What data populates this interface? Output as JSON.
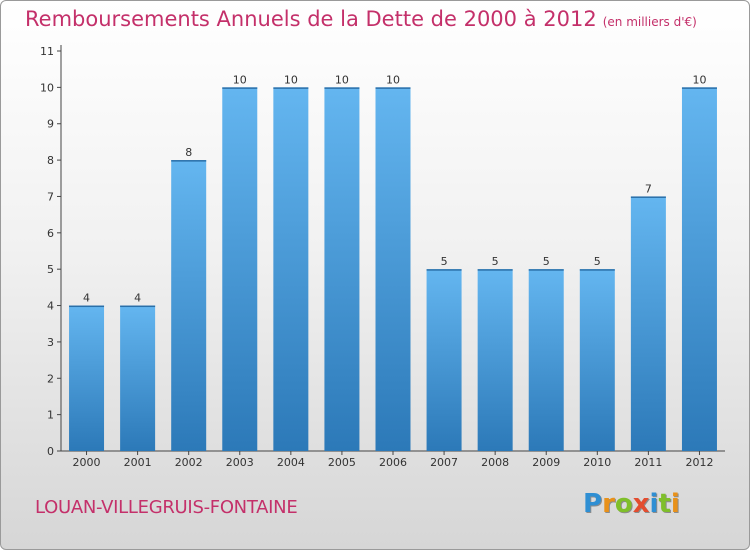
{
  "header": {
    "title": "Remboursements Annuels de la Dette de 2000 à 2012",
    "subtitle": "(en milliers d'€)"
  },
  "footer": {
    "commune": "LOUAN-VILLEGRUIS-FONTAINE",
    "logo": {
      "letters": [
        "P",
        "r",
        "o",
        "x",
        "i",
        "t",
        "i"
      ],
      "colors": [
        "#2f8fd3",
        "#e8911a",
        "#7fbf2a",
        "#e34d2f",
        "#2f8fd3",
        "#7fbf2a",
        "#e8911a"
      ]
    }
  },
  "chart_data": {
    "type": "bar",
    "title": "Remboursements Annuels de la Dette de 2000 à 2012",
    "subtitle": "(en milliers d'€)",
    "categories": [
      "2000",
      "2001",
      "2002",
      "2003",
      "2004",
      "2005",
      "2006",
      "2007",
      "2008",
      "2009",
      "2010",
      "2011",
      "2012"
    ],
    "values": [
      4,
      4,
      8,
      10,
      10,
      10,
      10,
      5,
      5,
      5,
      5,
      7,
      10
    ],
    "data_labels": [
      "4",
      "4",
      "8",
      "10",
      "10",
      "10",
      "10",
      "5",
      "5",
      "5",
      "5",
      "7",
      "10"
    ],
    "yticks": [
      "0",
      "1",
      "2",
      "3",
      "4",
      "5",
      "6",
      "7",
      "8",
      "9",
      "10",
      "11"
    ],
    "ylim": [
      0,
      11
    ],
    "grid": false,
    "bar_color": "#4a9fe0",
    "bar_color_light": "#64b6f0",
    "bar_color_dark": "#2c79b8"
  }
}
